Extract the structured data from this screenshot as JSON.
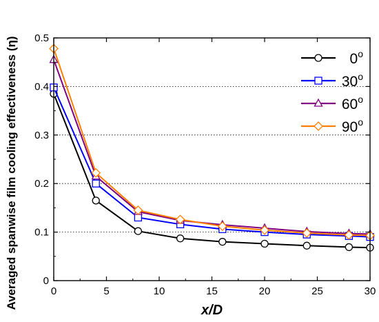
{
  "chart_data": {
    "type": "line",
    "xlabel": "x/D",
    "ylabel": "Averaged spanwise film cooling effectiveness (η)",
    "xlim": [
      0,
      30
    ],
    "ylim": [
      0,
      0.5
    ],
    "x_ticks": [
      "0",
      "5",
      "10",
      "15",
      "20",
      "25",
      "30"
    ],
    "y_ticks": [
      "0",
      "0.1",
      "0.2",
      "0.3",
      "0.4",
      "0.5"
    ],
    "grid": "horizontal dotted at 0.1, 0.2, 0.3, 0.4",
    "legend_position": "top-right",
    "x": [
      0,
      4,
      8,
      12,
      16,
      20,
      24,
      28,
      30
    ],
    "series": [
      {
        "name": "0",
        "unit": "o",
        "color": "#000000",
        "marker": "circle",
        "values": [
          0.385,
          0.165,
          0.102,
          0.087,
          0.08,
          0.076,
          0.072,
          0.069,
          0.068
        ]
      },
      {
        "name": "30",
        "unit": "o",
        "color": "#0000ff",
        "marker": "square",
        "values": [
          0.398,
          0.2,
          0.13,
          0.116,
          0.106,
          0.1,
          0.095,
          0.092,
          0.09
        ]
      },
      {
        "name": "60",
        "unit": "o",
        "color": "#800080",
        "marker": "triangle",
        "values": [
          0.455,
          0.215,
          0.142,
          0.124,
          0.115,
          0.108,
          0.101,
          0.097,
          0.096
        ]
      },
      {
        "name": "90",
        "unit": "o",
        "color": "#ff8000",
        "marker": "diamond",
        "values": [
          0.478,
          0.222,
          0.145,
          0.126,
          0.112,
          0.104,
          0.098,
          0.094,
          0.093
        ]
      }
    ]
  }
}
